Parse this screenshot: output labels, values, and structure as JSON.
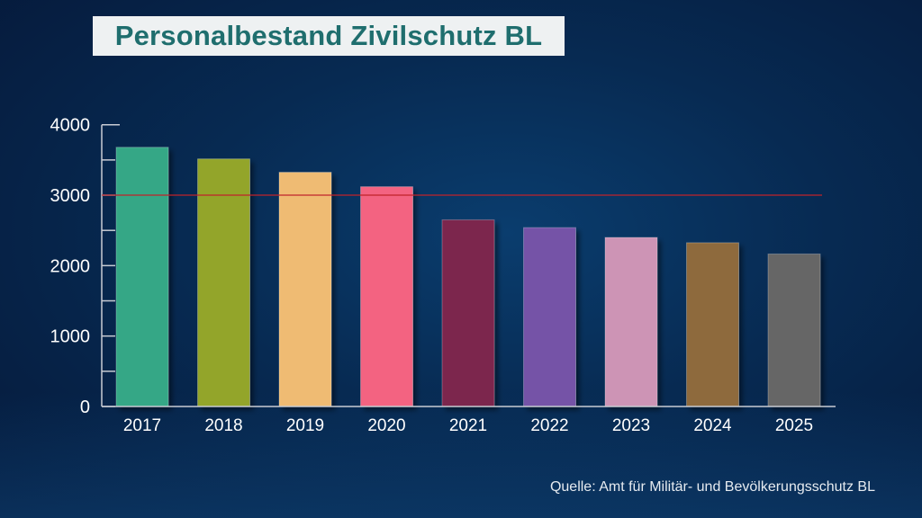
{
  "chart_data": {
    "type": "bar",
    "title": "Personalbestand Zivilschutz BL",
    "categories": [
      "2017",
      "2018",
      "2019",
      "2020",
      "2021",
      "2022",
      "2023",
      "2024",
      "2025"
    ],
    "values": [
      3680,
      3515,
      3325,
      3120,
      2650,
      2540,
      2400,
      2325,
      2165
    ],
    "colors": [
      "#35a786",
      "#93a52c",
      "#efbb73",
      "#f36381",
      "#7c264e",
      "#7452a7",
      "#cd94b5",
      "#8e6b3d",
      "#666666"
    ],
    "ylim": [
      0,
      4000
    ],
    "yticks": [
      "0",
      "1000",
      "2000",
      "3000",
      "4000"
    ],
    "minor_tick_step": 500,
    "reference_line": {
      "value": 3000,
      "color": "#c0232b"
    },
    "xlabel": "",
    "ylabel": "",
    "grid": false,
    "legend": "none"
  },
  "source": "Quelle: Amt für Militär- und Bevölkerungsschutz BL"
}
